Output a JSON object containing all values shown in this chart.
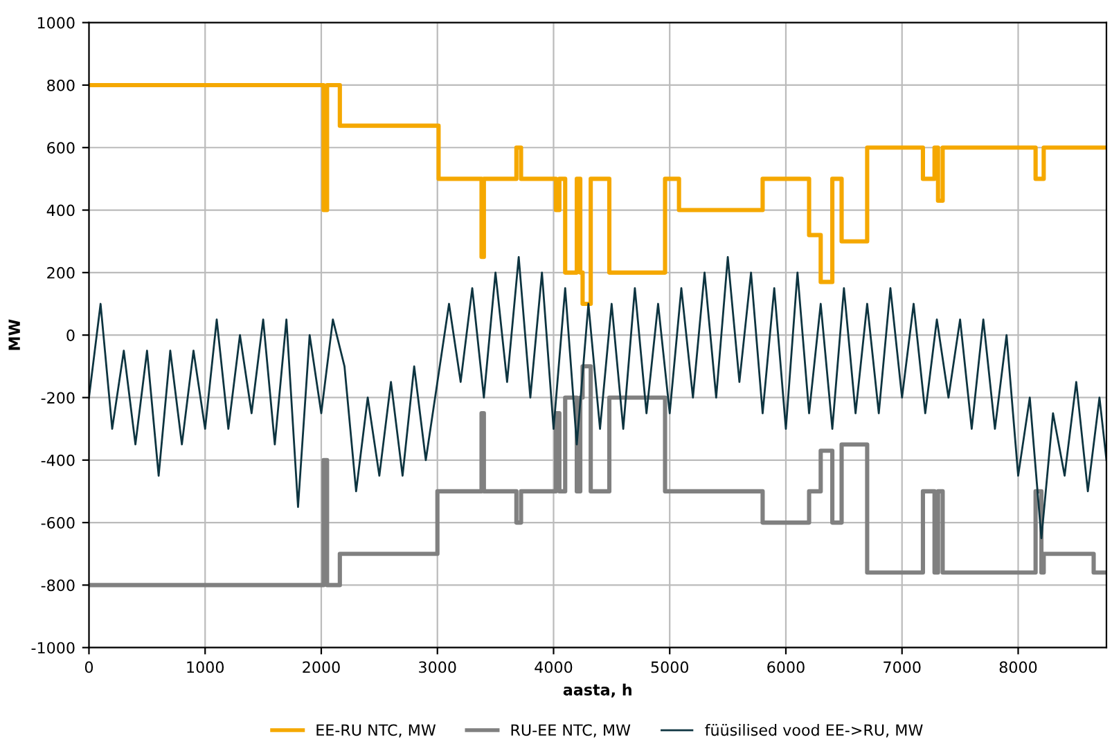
{
  "chart_data": {
    "type": "line",
    "xlabel": "aasta, h",
    "ylabel": "MW",
    "xlim": [
      0,
      8760
    ],
    "xticks": [
      0,
      1000,
      2000,
      3000,
      4000,
      5000,
      6000,
      7000,
      8000
    ],
    "ylim": [
      -1000,
      1000
    ],
    "yticks": [
      -1000,
      -800,
      -600,
      -400,
      -200,
      0,
      200,
      400,
      600,
      800,
      1000
    ],
    "grid": true,
    "legend": "bottom",
    "line_style": "solid",
    "marker": "none",
    "series": [
      {
        "name": "EE-RU NTC, MW",
        "type": "step",
        "color": "#f5a800",
        "x": [
          0,
          2020,
          2050,
          2160,
          3010,
          3380,
          3400,
          3680,
          3720,
          4020,
          4050,
          4100,
          4200,
          4230,
          4250,
          4320,
          4480,
          4960,
          5080,
          5800,
          6200,
          6300,
          6400,
          6480,
          6700,
          7180,
          7280,
          7310,
          7350,
          8150,
          8220,
          8760
        ],
        "values": [
          800,
          400,
          800,
          670,
          500,
          250,
          500,
          600,
          500,
          400,
          500,
          200,
          500,
          200,
          100,
          500,
          200,
          500,
          400,
          500,
          320,
          170,
          500,
          300,
          600,
          500,
          600,
          430,
          600,
          500,
          600,
          600
        ]
      },
      {
        "name": "RU-EE NTC, MW",
        "type": "step",
        "color": "#808080",
        "x": [
          0,
          2020,
          2050,
          2160,
          3000,
          3380,
          3400,
          3680,
          3720,
          4020,
          4050,
          4100,
          4200,
          4230,
          4250,
          4320,
          4480,
          4960,
          5800,
          6200,
          6300,
          6400,
          6480,
          6700,
          7180,
          7280,
          7310,
          7350,
          8150,
          8200,
          8220,
          8650,
          8760
        ],
        "values": [
          -800,
          -400,
          -800,
          -700,
          -500,
          -250,
          -500,
          -600,
          -500,
          -250,
          -500,
          -200,
          -500,
          -200,
          -100,
          -500,
          -200,
          -500,
          -600,
          -500,
          -370,
          -600,
          -350,
          -760,
          -500,
          -760,
          -500,
          -760,
          -500,
          -760,
          -700,
          -760,
          -760
        ]
      },
      {
        "name": "füüsilised vood EE->RU, MW",
        "type": "line",
        "color": "#0d3440",
        "x": [
          0,
          100,
          200,
          300,
          400,
          500,
          600,
          700,
          800,
          900,
          1000,
          1100,
          1200,
          1300,
          1400,
          1500,
          1600,
          1700,
          1800,
          1900,
          2000,
          2100,
          2200,
          2300,
          2400,
          2500,
          2600,
          2700,
          2800,
          2900,
          3000,
          3100,
          3200,
          3300,
          3400,
          3500,
          3600,
          3700,
          3800,
          3900,
          4000,
          4100,
          4200,
          4300,
          4400,
          4500,
          4600,
          4700,
          4800,
          4900,
          5000,
          5100,
          5200,
          5300,
          5400,
          5500,
          5600,
          5700,
          5800,
          5900,
          6000,
          6100,
          6200,
          6300,
          6400,
          6500,
          6600,
          6700,
          6800,
          6900,
          7000,
          7100,
          7200,
          7300,
          7400,
          7500,
          7600,
          7700,
          7800,
          7900,
          8000,
          8100,
          8200,
          8300,
          8400,
          8500,
          8600,
          8700,
          8760
        ],
        "values": [
          -200,
          100,
          -300,
          -50,
          -350,
          -50,
          -450,
          -50,
          -350,
          -50,
          -300,
          50,
          -300,
          0,
          -250,
          50,
          -350,
          50,
          -550,
          0,
          -250,
          50,
          -100,
          -500,
          -200,
          -450,
          -150,
          -450,
          -100,
          -400,
          -150,
          100,
          -150,
          150,
          -200,
          200,
          -150,
          250,
          -200,
          200,
          -300,
          150,
          -350,
          100,
          -300,
          100,
          -300,
          150,
          -250,
          100,
          -250,
          150,
          -200,
          200,
          -200,
          250,
          -150,
          200,
          -250,
          150,
          -300,
          200,
          -250,
          100,
          -300,
          150,
          -250,
          100,
          -250,
          150,
          -200,
          100,
          -250,
          50,
          -200,
          50,
          -300,
          50,
          -300,
          0,
          -450,
          -200,
          -650,
          -250,
          -450,
          -150,
          -500,
          -200,
          -400
        ]
      }
    ]
  }
}
